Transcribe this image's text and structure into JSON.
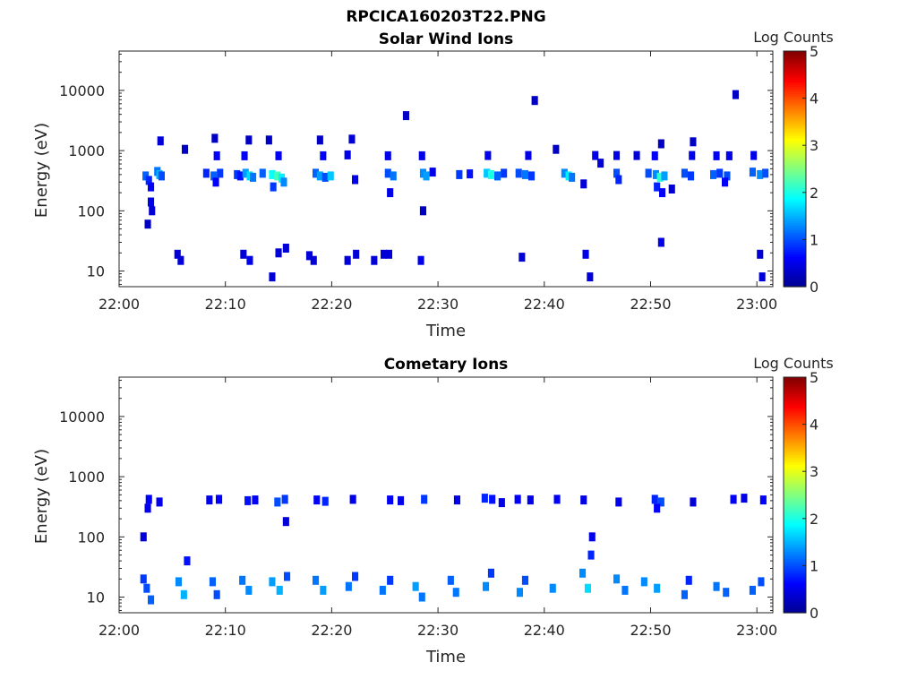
{
  "figure": {
    "suptitle": "RPCICA160203T22.PNG"
  },
  "colors": {
    "colormap": [
      "#00008f",
      "#0000ff",
      "#0080ff",
      "#00ffff",
      "#80ff80",
      "#ffff00",
      "#ff8000",
      "#ff0000",
      "#800000"
    ],
    "axes": "#262626",
    "background": "#ffffff"
  },
  "chart_data": [
    {
      "type": "heatmap",
      "title": "Solar Wind Ions",
      "xlabel": "Time",
      "ylabel": "Energy (eV)",
      "y_scale": "log",
      "ylim": [
        5.5,
        45000
      ],
      "xlim": [
        "22:00",
        "23:01:30"
      ],
      "x_ticks": [
        "22:00",
        "22:10",
        "22:20",
        "22:30",
        "22:40",
        "22:50",
        "23:00"
      ],
      "y_ticks": [
        "10",
        "100",
        "1000",
        "10000"
      ],
      "colorbar": {
        "label": "Log Counts",
        "min": 0,
        "max": 5,
        "ticks": [
          "0",
          "1",
          "2",
          "3",
          "4",
          "5"
        ]
      },
      "points": [
        {
          "t": 2.5,
          "e": 380,
          "v": 1.1
        },
        {
          "t": 2.8,
          "e": 320,
          "v": 0.8
        },
        {
          "t": 3.0,
          "e": 250,
          "v": 0.6
        },
        {
          "t": 3.0,
          "e": 140,
          "v": 0.5
        },
        {
          "t": 3.1,
          "e": 100,
          "v": 0.4
        },
        {
          "t": 2.7,
          "e": 60,
          "v": 0.3
        },
        {
          "t": 3.6,
          "e": 450,
          "v": 1.2
        },
        {
          "t": 3.8,
          "e": 400,
          "v": 1.5
        },
        {
          "t": 4.0,
          "e": 380,
          "v": 1.0
        },
        {
          "t": 3.9,
          "e": 1450,
          "v": 0.4
        },
        {
          "t": 6.2,
          "e": 1050,
          "v": 0.3
        },
        {
          "t": 8.2,
          "e": 420,
          "v": 0.8
        },
        {
          "t": 8.9,
          "e": 380,
          "v": 1.1
        },
        {
          "t": 9.1,
          "e": 300,
          "v": 0.6
        },
        {
          "t": 9.5,
          "e": 420,
          "v": 0.9
        },
        {
          "t": 9.0,
          "e": 1600,
          "v": 0.3
        },
        {
          "t": 9.2,
          "e": 820,
          "v": 0.6
        },
        {
          "t": 11.1,
          "e": 400,
          "v": 0.9
        },
        {
          "t": 11.4,
          "e": 380,
          "v": 0.7
        },
        {
          "t": 11.9,
          "e": 420,
          "v": 1.4
        },
        {
          "t": 12.3,
          "e": 380,
          "v": 1.7
        },
        {
          "t": 12.6,
          "e": 360,
          "v": 1.2
        },
        {
          "t": 12.2,
          "e": 1500,
          "v": 0.3
        },
        {
          "t": 11.8,
          "e": 820,
          "v": 0.6
        },
        {
          "t": 13.5,
          "e": 420,
          "v": 1.1
        },
        {
          "t": 14.4,
          "e": 400,
          "v": 1.9
        },
        {
          "t": 14.9,
          "e": 380,
          "v": 2.2
        },
        {
          "t": 15.3,
          "e": 350,
          "v": 1.8
        },
        {
          "t": 15.5,
          "e": 300,
          "v": 1.3
        },
        {
          "t": 14.5,
          "e": 250,
          "v": 0.9
        },
        {
          "t": 14.1,
          "e": 1500,
          "v": 0.3
        },
        {
          "t": 15.0,
          "e": 820,
          "v": 0.6
        },
        {
          "t": 18.5,
          "e": 420,
          "v": 1.1
        },
        {
          "t": 18.9,
          "e": 380,
          "v": 1.4
        },
        {
          "t": 19.4,
          "e": 360,
          "v": 1.0
        },
        {
          "t": 19.9,
          "e": 380,
          "v": 1.6
        },
        {
          "t": 19.2,
          "e": 820,
          "v": 0.6
        },
        {
          "t": 18.9,
          "e": 1500,
          "v": 0.3
        },
        {
          "t": 21.9,
          "e": 1550,
          "v": 0.4
        },
        {
          "t": 21.5,
          "e": 850,
          "v": 0.5
        },
        {
          "t": 22.2,
          "e": 330,
          "v": 0.5
        },
        {
          "t": 25.3,
          "e": 420,
          "v": 1.0
        },
        {
          "t": 25.8,
          "e": 380,
          "v": 1.2
        },
        {
          "t": 25.5,
          "e": 200,
          "v": 0.5
        },
        {
          "t": 25.3,
          "e": 820,
          "v": 0.5
        },
        {
          "t": 27.0,
          "e": 3800,
          "v": 0.3
        },
        {
          "t": 28.6,
          "e": 420,
          "v": 1.3
        },
        {
          "t": 28.9,
          "e": 380,
          "v": 1.4
        },
        {
          "t": 29.5,
          "e": 440,
          "v": 0.5
        },
        {
          "t": 28.5,
          "e": 820,
          "v": 0.5
        },
        {
          "t": 28.6,
          "e": 100,
          "v": 0.3
        },
        {
          "t": 32.0,
          "e": 400,
          "v": 0.9
        },
        {
          "t": 33.0,
          "e": 410,
          "v": 0.7
        },
        {
          "t": 34.6,
          "e": 420,
          "v": 1.6
        },
        {
          "t": 35.0,
          "e": 400,
          "v": 2.0
        },
        {
          "t": 35.6,
          "e": 380,
          "v": 1.1
        },
        {
          "t": 34.7,
          "e": 830,
          "v": 0.5
        },
        {
          "t": 36.2,
          "e": 420,
          "v": 0.9
        },
        {
          "t": 37.6,
          "e": 420,
          "v": 1.0
        },
        {
          "t": 38.2,
          "e": 400,
          "v": 1.2
        },
        {
          "t": 38.8,
          "e": 380,
          "v": 0.9
        },
        {
          "t": 38.5,
          "e": 830,
          "v": 0.5
        },
        {
          "t": 39.1,
          "e": 6800,
          "v": 0.3
        },
        {
          "t": 41.1,
          "e": 1050,
          "v": 0.3
        },
        {
          "t": 41.9,
          "e": 420,
          "v": 1.3
        },
        {
          "t": 42.3,
          "e": 380,
          "v": 1.8
        },
        {
          "t": 42.6,
          "e": 360,
          "v": 1.2
        },
        {
          "t": 43.7,
          "e": 280,
          "v": 0.4
        },
        {
          "t": 44.8,
          "e": 830,
          "v": 0.5
        },
        {
          "t": 45.3,
          "e": 620,
          "v": 0.4
        },
        {
          "t": 46.8,
          "e": 420,
          "v": 1.0
        },
        {
          "t": 47.0,
          "e": 330,
          "v": 0.8
        },
        {
          "t": 46.8,
          "e": 830,
          "v": 0.5
        },
        {
          "t": 48.7,
          "e": 830,
          "v": 0.4
        },
        {
          "t": 49.8,
          "e": 420,
          "v": 1.0
        },
        {
          "t": 50.5,
          "e": 400,
          "v": 1.3
        },
        {
          "t": 50.9,
          "e": 360,
          "v": 2.1
        },
        {
          "t": 51.3,
          "e": 380,
          "v": 1.4
        },
        {
          "t": 50.6,
          "e": 250,
          "v": 0.8
        },
        {
          "t": 51.1,
          "e": 200,
          "v": 0.6
        },
        {
          "t": 51.0,
          "e": 1300,
          "v": 0.3
        },
        {
          "t": 50.4,
          "e": 820,
          "v": 0.6
        },
        {
          "t": 52.0,
          "e": 230,
          "v": 0.4
        },
        {
          "t": 53.2,
          "e": 420,
          "v": 1.0
        },
        {
          "t": 53.8,
          "e": 380,
          "v": 0.9
        },
        {
          "t": 54.0,
          "e": 1400,
          "v": 0.3
        },
        {
          "t": 53.9,
          "e": 830,
          "v": 0.5
        },
        {
          "t": 55.9,
          "e": 400,
          "v": 1.1
        },
        {
          "t": 56.5,
          "e": 420,
          "v": 0.9
        },
        {
          "t": 57.2,
          "e": 380,
          "v": 1.0
        },
        {
          "t": 57.0,
          "e": 300,
          "v": 0.6
        },
        {
          "t": 56.2,
          "e": 820,
          "v": 0.6
        },
        {
          "t": 57.4,
          "e": 820,
          "v": 0.5
        },
        {
          "t": 58.0,
          "e": 8500,
          "v": 0.3
        },
        {
          "t": 59.6,
          "e": 440,
          "v": 1.1
        },
        {
          "t": 60.3,
          "e": 400,
          "v": 1.3
        },
        {
          "t": 60.8,
          "e": 420,
          "v": 1.0
        },
        {
          "t": 59.7,
          "e": 830,
          "v": 0.5
        },
        {
          "t": 51.0,
          "e": 30,
          "v": 0.5
        },
        {
          "t": 5.5,
          "e": 19,
          "v": 0.4
        },
        {
          "t": 5.8,
          "e": 15,
          "v": 0.4
        },
        {
          "t": 11.7,
          "e": 19,
          "v": 0.4
        },
        {
          "t": 12.3,
          "e": 15,
          "v": 0.5
        },
        {
          "t": 14.4,
          "e": 8,
          "v": 0.4
        },
        {
          "t": 15.0,
          "e": 20,
          "v": 0.4
        },
        {
          "t": 15.7,
          "e": 24,
          "v": 0.4
        },
        {
          "t": 17.9,
          "e": 18,
          "v": 0.4
        },
        {
          "t": 18.3,
          "e": 15,
          "v": 0.4
        },
        {
          "t": 21.5,
          "e": 15,
          "v": 0.4
        },
        {
          "t": 22.3,
          "e": 19,
          "v": 0.4
        },
        {
          "t": 24.0,
          "e": 15,
          "v": 0.4
        },
        {
          "t": 24.9,
          "e": 19,
          "v": 0.4
        },
        {
          "t": 25.4,
          "e": 19,
          "v": 0.4
        },
        {
          "t": 28.4,
          "e": 15,
          "v": 0.5
        },
        {
          "t": 37.9,
          "e": 17,
          "v": 0.4
        },
        {
          "t": 43.9,
          "e": 19,
          "v": 0.5
        },
        {
          "t": 44.3,
          "e": 8,
          "v": 0.4
        },
        {
          "t": 60.3,
          "e": 19,
          "v": 0.4
        },
        {
          "t": 60.5,
          "e": 8,
          "v": 0.4
        }
      ]
    },
    {
      "type": "heatmap",
      "title": "Cometary Ions",
      "xlabel": "Time",
      "ylabel": "Energy (eV)",
      "y_scale": "log",
      "ylim": [
        5.5,
        45000
      ],
      "xlim": [
        "22:00",
        "23:01:30"
      ],
      "x_ticks": [
        "22:00",
        "22:10",
        "22:20",
        "22:30",
        "22:40",
        "22:50",
        "23:00"
      ],
      "y_ticks": [
        "10",
        "100",
        "1000",
        "10000"
      ],
      "colorbar": {
        "label": "Log Counts",
        "min": 0,
        "max": 5,
        "ticks": [
          "0",
          "1",
          "2",
          "3",
          "4",
          "5"
        ]
      },
      "points": [
        {
          "t": 2.8,
          "e": 420,
          "v": 0.6
        },
        {
          "t": 2.7,
          "e": 300,
          "v": 0.5
        },
        {
          "t": 3.8,
          "e": 380,
          "v": 0.5
        },
        {
          "t": 2.3,
          "e": 100,
          "v": 0.4
        },
        {
          "t": 8.5,
          "e": 410,
          "v": 0.5
        },
        {
          "t": 9.4,
          "e": 420,
          "v": 0.6
        },
        {
          "t": 12.1,
          "e": 400,
          "v": 0.7
        },
        {
          "t": 12.8,
          "e": 410,
          "v": 0.6
        },
        {
          "t": 14.9,
          "e": 380,
          "v": 1.0
        },
        {
          "t": 15.6,
          "e": 420,
          "v": 0.9
        },
        {
          "t": 15.7,
          "e": 180,
          "v": 0.4
        },
        {
          "t": 18.6,
          "e": 410,
          "v": 0.6
        },
        {
          "t": 19.4,
          "e": 390,
          "v": 0.8
        },
        {
          "t": 22.0,
          "e": 420,
          "v": 0.5
        },
        {
          "t": 25.5,
          "e": 410,
          "v": 0.6
        },
        {
          "t": 26.5,
          "e": 400,
          "v": 0.5
        },
        {
          "t": 28.7,
          "e": 420,
          "v": 0.9
        },
        {
          "t": 31.8,
          "e": 410,
          "v": 0.5
        },
        {
          "t": 34.4,
          "e": 440,
          "v": 0.8
        },
        {
          "t": 35.1,
          "e": 420,
          "v": 0.7
        },
        {
          "t": 36.0,
          "e": 370,
          "v": 0.5
        },
        {
          "t": 37.5,
          "e": 420,
          "v": 0.6
        },
        {
          "t": 38.7,
          "e": 410,
          "v": 0.5
        },
        {
          "t": 41.2,
          "e": 420,
          "v": 0.6
        },
        {
          "t": 43.7,
          "e": 410,
          "v": 0.5
        },
        {
          "t": 47.0,
          "e": 380,
          "v": 0.5
        },
        {
          "t": 50.4,
          "e": 420,
          "v": 0.8
        },
        {
          "t": 51.0,
          "e": 380,
          "v": 1.0
        },
        {
          "t": 50.6,
          "e": 300,
          "v": 0.6
        },
        {
          "t": 54.0,
          "e": 380,
          "v": 0.4
        },
        {
          "t": 57.8,
          "e": 420,
          "v": 0.6
        },
        {
          "t": 58.8,
          "e": 440,
          "v": 0.5
        },
        {
          "t": 60.6,
          "e": 410,
          "v": 0.6
        },
        {
          "t": 2.3,
          "e": 20,
          "v": 0.9
        },
        {
          "t": 2.6,
          "e": 14,
          "v": 1.0
        },
        {
          "t": 3.0,
          "e": 9,
          "v": 1.1
        },
        {
          "t": 5.6,
          "e": 18,
          "v": 1.3
        },
        {
          "t": 6.1,
          "e": 11,
          "v": 1.5
        },
        {
          "t": 6.4,
          "e": 40,
          "v": 0.7
        },
        {
          "t": 8.8,
          "e": 18,
          "v": 1.1
        },
        {
          "t": 9.2,
          "e": 11,
          "v": 1.0
        },
        {
          "t": 11.6,
          "e": 19,
          "v": 1.2
        },
        {
          "t": 12.2,
          "e": 13,
          "v": 1.3
        },
        {
          "t": 14.4,
          "e": 18,
          "v": 1.4
        },
        {
          "t": 15.1,
          "e": 13,
          "v": 1.5
        },
        {
          "t": 15.8,
          "e": 22,
          "v": 1.0
        },
        {
          "t": 18.5,
          "e": 19,
          "v": 1.2
        },
        {
          "t": 19.2,
          "e": 13,
          "v": 1.4
        },
        {
          "t": 21.6,
          "e": 15,
          "v": 1.2
        },
        {
          "t": 22.2,
          "e": 22,
          "v": 0.9
        },
        {
          "t": 24.8,
          "e": 13,
          "v": 1.2
        },
        {
          "t": 25.5,
          "e": 19,
          "v": 0.9
        },
        {
          "t": 27.9,
          "e": 15,
          "v": 1.4
        },
        {
          "t": 28.5,
          "e": 10,
          "v": 1.2
        },
        {
          "t": 31.2,
          "e": 19,
          "v": 1.1
        },
        {
          "t": 31.7,
          "e": 12,
          "v": 1.2
        },
        {
          "t": 34.5,
          "e": 15,
          "v": 1.3
        },
        {
          "t": 35.0,
          "e": 25,
          "v": 0.9
        },
        {
          "t": 37.7,
          "e": 12,
          "v": 1.3
        },
        {
          "t": 38.2,
          "e": 19,
          "v": 1.0
        },
        {
          "t": 40.8,
          "e": 14,
          "v": 1.3
        },
        {
          "t": 43.6,
          "e": 25,
          "v": 1.3
        },
        {
          "t": 44.1,
          "e": 14,
          "v": 1.7
        },
        {
          "t": 44.4,
          "e": 50,
          "v": 0.8
        },
        {
          "t": 44.5,
          "e": 100,
          "v": 0.5
        },
        {
          "t": 46.8,
          "e": 20,
          "v": 1.3
        },
        {
          "t": 47.6,
          "e": 13,
          "v": 1.2
        },
        {
          "t": 49.4,
          "e": 18,
          "v": 1.3
        },
        {
          "t": 50.6,
          "e": 14,
          "v": 1.4
        },
        {
          "t": 53.2,
          "e": 11,
          "v": 1.1
        },
        {
          "t": 53.6,
          "e": 19,
          "v": 0.8
        },
        {
          "t": 56.2,
          "e": 15,
          "v": 1.2
        },
        {
          "t": 57.1,
          "e": 12,
          "v": 1.1
        },
        {
          "t": 59.6,
          "e": 13,
          "v": 1.1
        },
        {
          "t": 60.4,
          "e": 18,
          "v": 1.0
        }
      ]
    }
  ]
}
